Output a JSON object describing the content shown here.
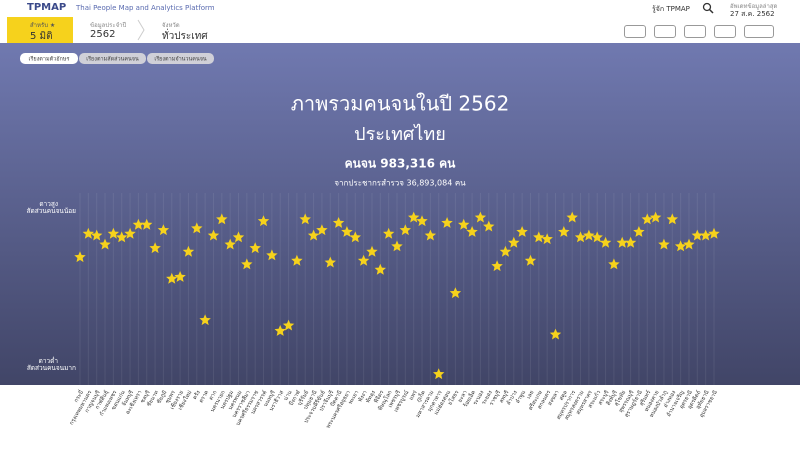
{
  "header": {
    "logo": "TPMAP",
    "platform": "Thai People Map and Analytics Platform",
    "about": "รู้จัก TPMAP",
    "update_label": "อัพเดทข้อมูลล่าสุด",
    "update_date": "27 ส.ค. 2562"
  },
  "filters": {
    "dimension_label": "สำหรับ ★",
    "dimension": "5 มิติ",
    "year_label": "ข้อมูลประจำปี",
    "year": "2562",
    "province_label": "จังหวัด",
    "province": "ทั่วประเทศ"
  },
  "tabs": [
    "เรียงตามตัวอักษร",
    "เรียงตามสัดส่วนคนจน",
    "เรียงตามจำนวนคนจน"
  ],
  "chart_data": {
    "type": "scatter",
    "title": "ภาพรวมคนจนในปี 2562",
    "subtitle": "ประเทศไทย",
    "poor_count": "คนจน 983,316 คน",
    "population": "จากประชากรสำรวจ 36,893,084 คน",
    "y_high_label": [
      "ดาวสูง",
      "สัดส่วนคนจนน้อย"
    ],
    "y_low_label": [
      "ดาวต่ำ",
      "สัดส่วนคนจนมาก"
    ],
    "color": "#f6d21c",
    "ylim": [
      0,
      100
    ],
    "categories": [
      "กระบี่",
      "กรุงเทพมหานคร",
      "กาญจนบุรี",
      "กาฬสินธุ์",
      "กำแพงเพชร",
      "ขอนแก่น",
      "จันทบุรี",
      "ฉะเชิงเทรา",
      "ชลบุรี",
      "ชัยนาท",
      "ชัยภูมิ",
      "ชุมพร",
      "เชียงราย",
      "เชียงใหม่",
      "ตรัง",
      "ตราด",
      "ตาก",
      "นครนายก",
      "นครปฐม",
      "นครพนม",
      "นครราชสีมา",
      "นครศรีธรรมราช",
      "นครสวรรค์",
      "นนทบุรี",
      "นราธิวาส",
      "น่าน",
      "บึงกาฬ",
      "บุรีรัมย์",
      "ปทุมธานี",
      "ประจวบคีรีขันธ์",
      "ปราจีนบุรี",
      "ปัตตานี",
      "พระนครศรีอยุธยา",
      "พะเยา",
      "พังงา",
      "พัทลุง",
      "พิจิตร",
      "พิษณุโลก",
      "เพชรบุรี",
      "เพชรบูรณ์",
      "แพร่",
      "ภูเก็ต",
      "มหาสารคาม",
      "มุกดาหาร",
      "แม่ฮ่องสอน",
      "ยโสธร",
      "ยะลา",
      "ร้อยเอ็ด",
      "ระนอง",
      "ระยอง",
      "ราชบุรี",
      "ลพบุรี",
      "ลำปาง",
      "ลำพูน",
      "เลย",
      "ศรีสะเกษ",
      "สกลนคร",
      "สงขลา",
      "สตูล",
      "สมุทรปราการ",
      "สมุทรสงคราม",
      "สมุทรสาคร",
      "สระแก้ว",
      "สระบุรี",
      "สิงห์บุรี",
      "สุโขทัย",
      "สุพรรณบุรี",
      "สุราษฎร์ธานี",
      "สุรินทร์",
      "หนองคาย",
      "หนองบัวลำภู",
      "อ่างทอง",
      "อำนาจเจริญ",
      "อุดรธานี",
      "อุตรดิตถ์",
      "อุทัยธานี",
      "อุบลราชธานี"
    ],
    "values": [
      71,
      84,
      83,
      78,
      84,
      82,
      84,
      89,
      89,
      76,
      86,
      59,
      60,
      74,
      87,
      36,
      83,
      92,
      78,
      82,
      67,
      76,
      91,
      72,
      30,
      33,
      69,
      92,
      83,
      86,
      68,
      90,
      85,
      82,
      69,
      74,
      64,
      84,
      77,
      86,
      93,
      91,
      83,
      6,
      90,
      51,
      89,
      85,
      93,
      88,
      66,
      74,
      79,
      85,
      69,
      82,
      81,
      28,
      85,
      93,
      82,
      83,
      82,
      79,
      67,
      79,
      79,
      85,
      92,
      93,
      78,
      92,
      77,
      78,
      83,
      83,
      84
    ]
  }
}
